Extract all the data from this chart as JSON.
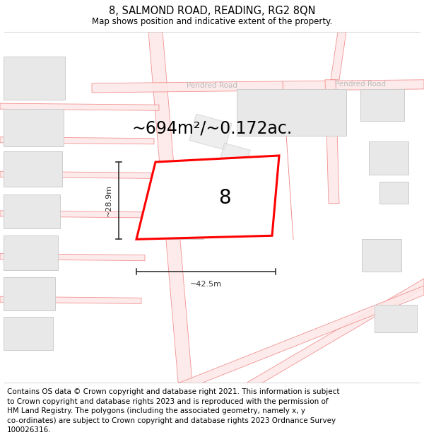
{
  "title": "8, SALMOND ROAD, READING, RG2 8QN",
  "subtitle": "Map shows position and indicative extent of the property.",
  "area_text": "~694m²/~0.172ac.",
  "width_label": "~42.5m",
  "height_label": "~28.9m",
  "property_number": "8",
  "footer_text": "Contains OS data © Crown copyright and database right 2021. This information is subject\nto Crown copyright and database rights 2023 and is reproduced with the permission of\nHM Land Registry. The polygons (including the associated geometry, namely x, y\nco-ordinates) are subject to Crown copyright and database rights 2023 Ordnance Survey\n100026316.",
  "bg_color": "#ffffff",
  "map_bg": "#ffffff",
  "road_line_color": "#f08080",
  "road_fill_color": "#fde8e8",
  "building_color": "#e8e8e8",
  "building_edge_color": "#cccccc",
  "highlight_color": "#ff0000",
  "road_label_color": "#bbbbbb",
  "dim_color": "#333333",
  "title_fontsize": 10.5,
  "subtitle_fontsize": 8.5,
  "footer_fontsize": 7.5,
  "area_fontsize": 17
}
